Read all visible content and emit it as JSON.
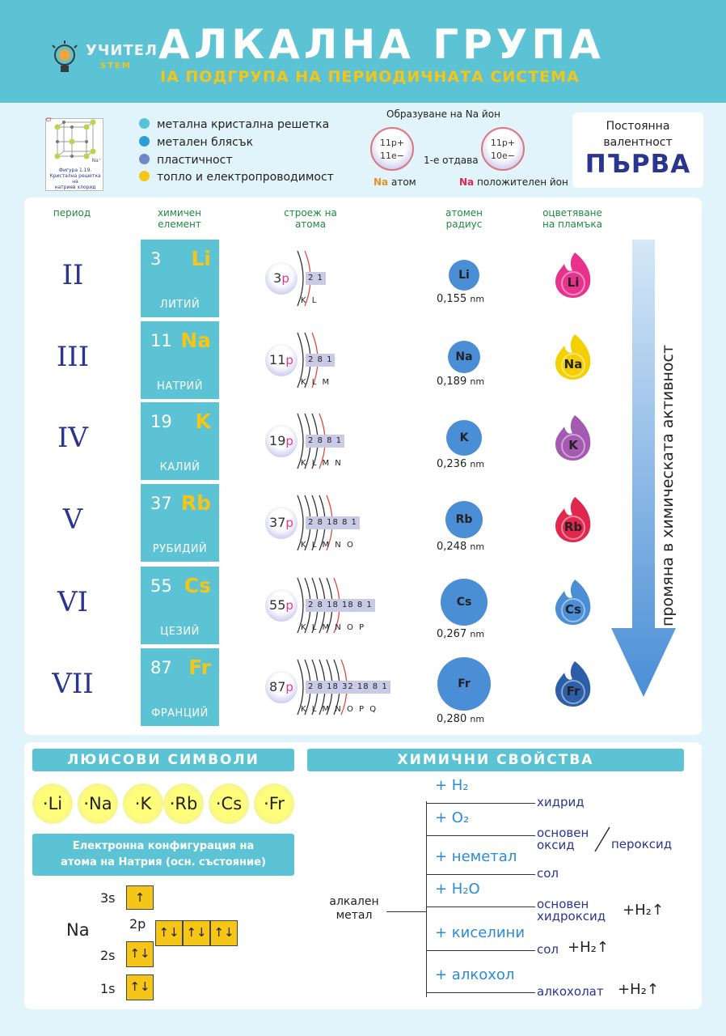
{
  "header": {
    "logo_text": "УЧИТЕЛ",
    "logo_sub": "STEM",
    "title": "АЛКАЛНА ГРУПА",
    "subtitle": "IA ПОДГРУПА НА ПЕРИОДИЧНАТА СИСТЕМА"
  },
  "crystal": {
    "caption_line1": "Фигура 1.19.",
    "caption_line2": "Кристална решетка на",
    "caption_line3": "натриев хлорид",
    "label_cl": "Cl⁻",
    "label_na": "Na⁺"
  },
  "legend": [
    {
      "text": "метална кристална решетка",
      "color": "#54c3d9"
    },
    {
      "text": "метален блясък",
      "color": "#2d9dd6"
    },
    {
      "text": "пластичност",
      "color": "#6f86cc"
    },
    {
      "text": "топло и електропроводимост",
      "color": "#f5c518"
    }
  ],
  "ion": {
    "title": "Образуване на Na йон",
    "atom_p": "11p+",
    "atom_e": "11e−",
    "ion_p": "11p+",
    "ion_e": "10e−",
    "middle": "1-е отдава",
    "atom_sym": "Na",
    "atom_word": "атом",
    "ion_sym": "Na",
    "ion_word": "положителен йон"
  },
  "valence": {
    "line1": "Постоянна",
    "line2": "валентност",
    "value": "ПЪРВА"
  },
  "columns": {
    "period": "период",
    "element_l1": "химичен",
    "element_l2": "елемент",
    "structure_l1": "строеж на",
    "structure_l2": "атома",
    "radius_l1": "атомен",
    "radius_l2": "радиус",
    "flame_l1": "оцветяване",
    "flame_l2": "на пламъка"
  },
  "elements": [
    {
      "period": "II",
      "num": "3",
      "sym": "Li",
      "name": "ЛИТИЙ",
      "nuc": "3",
      "shells": "2 1",
      "shell_labels": "K L",
      "radius": "0,155",
      "unit": "nm",
      "flame": "#e8338d"
    },
    {
      "period": "III",
      "num": "11",
      "sym": "Na",
      "name": "НАТРИЙ",
      "nuc": "11",
      "shells": "2 8 1",
      "shell_labels": "K L M",
      "radius": "0,189",
      "unit": "nm",
      "flame": "#f5d000"
    },
    {
      "period": "IV",
      "num": "19",
      "sym": "K",
      "name": "КАЛИЙ",
      "nuc": "19",
      "shells": "2 8 8 1",
      "shell_labels": "K L M N",
      "radius": "0,236",
      "unit": "nm",
      "flame": "#a45ab0"
    },
    {
      "period": "V",
      "num": "37",
      "sym": "Rb",
      "name": "РУБИДИЙ",
      "nuc": "37",
      "shells": "2 8 18 8 1",
      "shell_labels": "K L M N O",
      "radius": "0,248",
      "unit": "nm",
      "flame": "#e0284f"
    },
    {
      "period": "VI",
      "num": "55",
      "sym": "Cs",
      "name": "ЦЕЗИЙ",
      "nuc": "55",
      "shells": "2 8 18 18 8 1",
      "shell_labels": "K L M N O P",
      "radius": "0,267",
      "unit": "nm",
      "flame": "#4a8ed6"
    },
    {
      "period": "VII",
      "num": "87",
      "sym": "Fr",
      "name": "ФРАНЦИЙ",
      "nuc": "87",
      "shells": "2 8 18 32 18 8 1",
      "shell_labels": "K L M N O P Q",
      "radius": "0,280",
      "unit": "nm",
      "flame": "#2d5ea8"
    }
  ],
  "arrow_label": "промяна в химическата активност",
  "lewis": {
    "title": "ЛЮИСОВИ СИМВОЛИ",
    "symbols": [
      "·Li",
      "·Na",
      "·K",
      "·Rb",
      "·Cs",
      "·Fr"
    ]
  },
  "config": {
    "title_l1": "Електронна конфигурация на",
    "title_l2": "атома на Натрия (осн. състояние)",
    "element": "Na",
    "l_3s": "3s",
    "l_2p": "2p",
    "l_2s": "2s",
    "l_1s": "1s",
    "up": "↑",
    "pair": "↑↓"
  },
  "props": {
    "title": "ХИМИЧНИ СВОЙСТВА",
    "left_l1": "алкален",
    "left_l2": "метал",
    "rows": [
      {
        "reagent": "+ H₂",
        "product": "хидрид",
        "product2": "",
        "extra": ""
      },
      {
        "reagent": "+ O₂",
        "product": "основен",
        "product2": "оксид",
        "extra": "пероксид"
      },
      {
        "reagent": "+ неметал",
        "product": "сол",
        "product2": "",
        "extra": ""
      },
      {
        "reagent": "+ H₂O",
        "product": "основен",
        "product2": "хидроксид",
        "extra": "+H₂↑"
      },
      {
        "reagent": "+ киселини",
        "product": "сол",
        "product2": "",
        "extra": "+H₂↑"
      },
      {
        "reagent": "+ алкохол",
        "product": "алкохолат",
        "product2": "",
        "extra": "+H₂↑"
      }
    ]
  }
}
